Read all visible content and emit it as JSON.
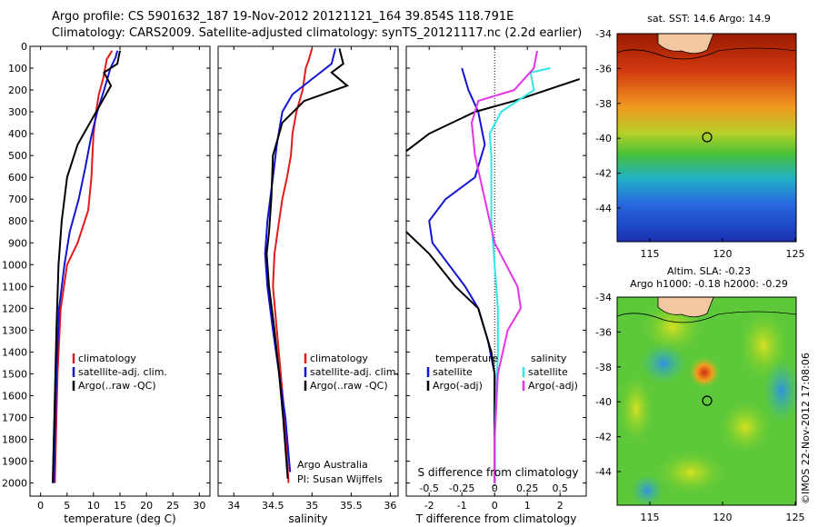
{
  "header": {
    "line1": "Argo profile: CS 5901632_187 19-Nov-2012 20121121_164 39.854S 118.791E",
    "line2": "Climatology: CARS2009. Satellite-adjusted climatology: synTS_20121117.nc (2.2d earlier)"
  },
  "colors": {
    "climatology": "#e31a1c",
    "satellite": "#1414d2",
    "argo": "#000000",
    "satellite_s": "#2ee6e6",
    "argo_s": "#e633e6"
  },
  "depth_axis": {
    "ticks": [
      0,
      100,
      200,
      300,
      400,
      500,
      600,
      700,
      800,
      900,
      1000,
      1100,
      1200,
      1300,
      1400,
      1500,
      1600,
      1700,
      1800,
      1900,
      2000
    ],
    "ylim": [
      0,
      2060
    ]
  },
  "chart_data": [
    {
      "type": "line",
      "xlabel": "temperature (deg C)",
      "xticks": [
        0,
        5,
        10,
        15,
        20,
        25,
        30
      ],
      "xlim": [
        -2,
        32
      ],
      "legend": [
        "climatology",
        "satellite-adj. clim.",
        "Argo(..raw -QC)"
      ],
      "series": [
        {
          "name": "climatology",
          "color": "climatology",
          "points": [
            [
              13.5,
              20
            ],
            [
              12.5,
              60
            ],
            [
              12.2,
              100
            ],
            [
              11.8,
              150
            ],
            [
              11,
              220
            ],
            [
              10.5,
              300
            ],
            [
              10,
              400
            ],
            [
              9.8,
              500
            ],
            [
              9.6,
              600
            ],
            [
              9,
              750
            ],
            [
              7,
              900
            ],
            [
              5,
              1000
            ],
            [
              3.8,
              1200
            ],
            [
              3.2,
              1500
            ],
            [
              2.9,
              1800
            ],
            [
              2.7,
              2000
            ]
          ]
        },
        {
          "name": "satellite-adj. clim.",
          "color": "satellite",
          "points": [
            [
              14.5,
              20
            ],
            [
              14.2,
              50
            ],
            [
              13.2,
              100
            ],
            [
              12,
              200
            ],
            [
              10.7,
              300
            ],
            [
              9.5,
              420
            ],
            [
              8.5,
              550
            ],
            [
              7.2,
              700
            ],
            [
              5.5,
              850
            ],
            [
              4.5,
              1000
            ],
            [
              3.5,
              1200
            ],
            [
              3,
              1500
            ],
            [
              2.7,
              1800
            ],
            [
              2.5,
              2000
            ]
          ]
        },
        {
          "name": "Argo(..raw -QC)",
          "color": "argo",
          "points": [
            [
              15,
              20
            ],
            [
              14.5,
              80
            ],
            [
              12,
              120
            ],
            [
              13.3,
              180
            ],
            [
              10.5,
              300
            ],
            [
              7,
              450
            ],
            [
              5,
              600
            ],
            [
              4,
              800
            ],
            [
              3.4,
              1000
            ],
            [
              3,
              1300
            ],
            [
              2.6,
              1700
            ],
            [
              2.3,
              2000
            ]
          ]
        }
      ]
    },
    {
      "type": "line",
      "xlabel": "salinity",
      "xticks": [
        34,
        34.5,
        35,
        35.5,
        36
      ],
      "xlim": [
        33.8,
        36.1
      ],
      "legend": [
        "climatology",
        "satellite-adj. clim.",
        "Argo(..raw -QC)"
      ],
      "annotations": [
        "Argo Australia",
        "PI: Susan Wijffels"
      ],
      "series": [
        {
          "name": "climatology",
          "color": "climatology",
          "points": [
            [
              35,
              10
            ],
            [
              34.96,
              60
            ],
            [
              34.92,
              100
            ],
            [
              34.88,
              200
            ],
            [
              34.8,
              300
            ],
            [
              34.75,
              400
            ],
            [
              34.73,
              500
            ],
            [
              34.68,
              600
            ],
            [
              34.62,
              700
            ],
            [
              34.58,
              800
            ],
            [
              34.52,
              950
            ],
            [
              34.5,
              1100
            ],
            [
              34.55,
              1300
            ],
            [
              34.6,
              1500
            ],
            [
              34.65,
              1700
            ],
            [
              34.7,
              2000
            ]
          ]
        },
        {
          "name": "satellite-adj. clim.",
          "color": "satellite",
          "points": [
            [
              35.3,
              10
            ],
            [
              35.25,
              80
            ],
            [
              35,
              150
            ],
            [
              34.75,
              220
            ],
            [
              34.62,
              300
            ],
            [
              34.55,
              450
            ],
            [
              34.5,
              600
            ],
            [
              34.43,
              800
            ],
            [
              34.4,
              950
            ],
            [
              34.43,
              1100
            ],
            [
              34.5,
              1300
            ],
            [
              34.58,
              1500
            ],
            [
              34.66,
              1700
            ],
            [
              34.72,
              1950
            ]
          ]
        },
        {
          "name": "Argo(..raw -QC)",
          "color": "argo",
          "points": [
            [
              35.35,
              10
            ],
            [
              35.4,
              80
            ],
            [
              35.25,
              120
            ],
            [
              35.45,
              180
            ],
            [
              34.9,
              250
            ],
            [
              34.62,
              350
            ],
            [
              34.5,
              500
            ],
            [
              34.48,
              700
            ],
            [
              34.45,
              850
            ],
            [
              34.42,
              950
            ],
            [
              34.45,
              1100
            ],
            [
              34.52,
              1300
            ],
            [
              34.58,
              1500
            ],
            [
              34.63,
              1700
            ],
            [
              34.69,
              1980
            ]
          ]
        }
      ]
    },
    {
      "type": "line",
      "xlabel": "T difference from climatology",
      "top_label": "S difference from climatology",
      "xticks": [
        -2,
        -1,
        0,
        1,
        2
      ],
      "top_ticks": [
        -0.5,
        -0.25,
        0,
        0.25,
        0.5
      ],
      "xlim": [
        -2.7,
        2.8
      ],
      "legend_t": [
        "temperature",
        "satellite",
        "Argo(-adj)"
      ],
      "legend_s": [
        "salinity",
        "satellite",
        "Argo(-adj)"
      ],
      "series": [
        {
          "name": "satellite",
          "color": "satellite",
          "points": [
            [
              -1,
              100
            ],
            [
              -0.8,
              200
            ],
            [
              -0.5,
              300
            ],
            [
              -0.3,
              450
            ],
            [
              -0.6,
              600
            ],
            [
              -1.5,
              700
            ],
            [
              -2,
              800
            ],
            [
              -1.9,
              900
            ],
            [
              -1.4,
              1000
            ],
            [
              -0.9,
              1100
            ],
            [
              -0.5,
              1200
            ],
            [
              -0.2,
              1350
            ],
            [
              0,
              1500
            ],
            [
              0,
              2000
            ]
          ]
        },
        {
          "name": "Argo(-adj)",
          "color": "argo",
          "points": [
            [
              2.6,
              150
            ],
            [
              0.6,
              250
            ],
            [
              -0.6,
              300
            ],
            [
              -2,
              400
            ],
            [
              -2.7,
              480
            ]
          ],
          "points2": [
            [
              -2.7,
              850
            ],
            [
              -2,
              950
            ],
            [
              -1.2,
              1100
            ],
            [
              -0.5,
              1200
            ],
            [
              -0.1,
              1400
            ],
            [
              0,
              1500
            ],
            [
              0,
              2000
            ]
          ]
        },
        {
          "name": "satellite",
          "color": "satellite_s",
          "points": [
            [
              1.7,
              100
            ],
            [
              1.1,
              120
            ],
            [
              1.2,
              200
            ],
            [
              0.2,
              300
            ],
            [
              -0.15,
              400
            ],
            [
              -0.1,
              500
            ],
            [
              -0.1,
              650
            ],
            [
              -0.1,
              800
            ],
            [
              0,
              1000
            ],
            [
              0.1,
              1200
            ],
            [
              0.1,
              1400
            ],
            [
              0.05,
              1600
            ],
            [
              0,
              1800
            ],
            [
              0,
              2000
            ]
          ]
        },
        {
          "name": "Argo(-adj)",
          "color": "argo_s",
          "points": [
            [
              1.3,
              20
            ],
            [
              1.2,
              100
            ],
            [
              0.6,
              200
            ],
            [
              -0.5,
              250
            ],
            [
              -0.7,
              350
            ],
            [
              -0.6,
              500
            ],
            [
              -0.3,
              700
            ],
            [
              0,
              900
            ],
            [
              0.7,
              1100
            ],
            [
              0.8,
              1200
            ],
            [
              0.4,
              1300
            ],
            [
              0.1,
              1500
            ],
            [
              0,
              1800
            ],
            [
              0,
              2000
            ]
          ]
        }
      ]
    }
  ],
  "maps": [
    {
      "title": "sat. SST: 14.6 Argo: 14.9",
      "yticks": [
        "-34",
        "-36",
        "-38",
        "-40",
        "-42",
        "-44"
      ],
      "xticks": [
        "115",
        "120",
        "125"
      ]
    },
    {
      "title1": "Altim. SLA: -0.23",
      "title2": "Argo h1000: -0.18 h2000: -0.29",
      "yticks": [
        "-34",
        "-36",
        "-38",
        "-40",
        "-42",
        "-44"
      ],
      "xticks": [
        "115",
        "120",
        "125"
      ]
    }
  ],
  "stamp": "©IMOS 22-Nov-2012 17:08:06"
}
